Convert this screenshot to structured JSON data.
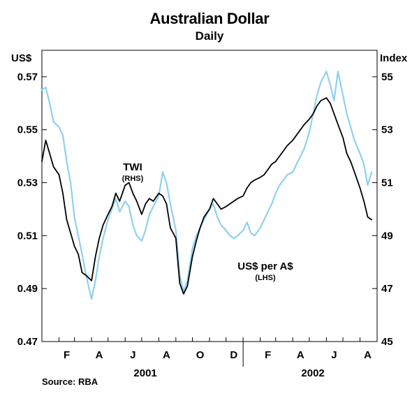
{
  "chart_data": {
    "type": "line",
    "title": "Australian Dollar",
    "subtitle": "Daily",
    "source": "Source: RBA",
    "left_axis": {
      "unit": "US$",
      "ticks": [
        "0.57",
        "0.55",
        "0.53",
        "0.51",
        "0.49",
        "0.47"
      ],
      "ylim": [
        0.47,
        0.58
      ]
    },
    "right_axis": {
      "unit": "Index",
      "ticks": [
        "55",
        "53",
        "51",
        "49",
        "47",
        "45"
      ],
      "ylim": [
        45,
        56
      ]
    },
    "x_axis": {
      "month_labels": [
        "F",
        "A",
        "J",
        "A",
        "O",
        "D",
        "F",
        "A",
        "J",
        "A"
      ],
      "year_labels": [
        "2001",
        "2002"
      ],
      "range": [
        "2001-01",
        "2002-08"
      ]
    },
    "series": [
      {
        "name": "TWI",
        "sub": "(RHS)",
        "axis": "right",
        "color": "#000000",
        "points": [
          [
            "2001-01-01",
            51.8
          ],
          [
            "2001-01-08",
            52.6
          ],
          [
            "2001-01-15",
            52.1
          ],
          [
            "2001-01-22",
            51.6
          ],
          [
            "2001-02-01",
            51.3
          ],
          [
            "2001-02-08",
            50.6
          ],
          [
            "2001-02-15",
            49.6
          ],
          [
            "2001-02-22",
            49.1
          ],
          [
            "2001-03-01",
            48.6
          ],
          [
            "2001-03-08",
            48.3
          ],
          [
            "2001-03-15",
            47.6
          ],
          [
            "2001-03-22",
            47.5
          ],
          [
            "2001-04-01",
            47.3
          ],
          [
            "2001-04-08",
            48.2
          ],
          [
            "2001-04-15",
            48.9
          ],
          [
            "2001-04-22",
            49.4
          ],
          [
            "2001-05-01",
            49.8
          ],
          [
            "2001-05-08",
            50.1
          ],
          [
            "2001-05-15",
            50.6
          ],
          [
            "2001-05-22",
            50.3
          ],
          [
            "2001-06-01",
            50.9
          ],
          [
            "2001-06-08",
            51.0
          ],
          [
            "2001-06-15",
            50.6
          ],
          [
            "2001-06-22",
            50.3
          ],
          [
            "2001-07-01",
            49.8
          ],
          [
            "2001-07-08",
            50.2
          ],
          [
            "2001-07-15",
            50.4
          ],
          [
            "2001-07-22",
            50.3
          ],
          [
            "2001-08-01",
            50.6
          ],
          [
            "2001-08-08",
            50.5
          ],
          [
            "2001-08-15",
            50.2
          ],
          [
            "2001-08-22",
            49.3
          ],
          [
            "2001-09-01",
            48.9
          ],
          [
            "2001-09-08",
            47.2
          ],
          [
            "2001-09-15",
            46.8
          ],
          [
            "2001-09-22",
            47.1
          ],
          [
            "2001-10-01",
            48.2
          ],
          [
            "2001-10-08",
            48.8
          ],
          [
            "2001-10-15",
            49.3
          ],
          [
            "2001-10-22",
            49.7
          ],
          [
            "2001-11-01",
            50.0
          ],
          [
            "2001-11-08",
            50.4
          ],
          [
            "2001-11-15",
            50.2
          ],
          [
            "2001-11-22",
            50.0
          ],
          [
            "2001-12-01",
            50.1
          ],
          [
            "2001-12-08",
            50.2
          ],
          [
            "2001-12-15",
            50.3
          ],
          [
            "2001-12-22",
            50.4
          ],
          [
            "2002-01-01",
            50.5
          ],
          [
            "2002-01-08",
            50.8
          ],
          [
            "2002-01-15",
            51.0
          ],
          [
            "2002-01-22",
            51.1
          ],
          [
            "2002-02-01",
            51.2
          ],
          [
            "2002-02-08",
            51.3
          ],
          [
            "2002-02-15",
            51.5
          ],
          [
            "2002-02-22",
            51.7
          ],
          [
            "2002-03-01",
            51.8
          ],
          [
            "2002-03-08",
            52.0
          ],
          [
            "2002-03-15",
            52.2
          ],
          [
            "2002-03-22",
            52.4
          ],
          [
            "2002-04-01",
            52.6
          ],
          [
            "2002-04-08",
            52.8
          ],
          [
            "2002-04-15",
            53.0
          ],
          [
            "2002-04-22",
            53.2
          ],
          [
            "2002-05-01",
            53.4
          ],
          [
            "2002-05-08",
            53.6
          ],
          [
            "2002-05-15",
            53.9
          ],
          [
            "2002-05-22",
            54.1
          ],
          [
            "2002-06-01",
            54.2
          ],
          [
            "2002-06-08",
            54.0
          ],
          [
            "2002-06-15",
            53.6
          ],
          [
            "2002-06-22",
            53.2
          ],
          [
            "2002-07-01",
            52.7
          ],
          [
            "2002-07-08",
            52.1
          ],
          [
            "2002-07-15",
            51.8
          ],
          [
            "2002-07-22",
            51.4
          ],
          [
            "2002-08-01",
            50.8
          ],
          [
            "2002-08-08",
            50.3
          ],
          [
            "2002-08-15",
            49.7
          ],
          [
            "2002-08-22",
            49.6
          ]
        ]
      },
      {
        "name": "US$ per A$",
        "sub": "(LHS)",
        "axis": "left",
        "color": "#8fd0f0",
        "points": [
          [
            "2001-01-01",
            0.565
          ],
          [
            "2001-01-08",
            0.566
          ],
          [
            "2001-01-15",
            0.56
          ],
          [
            "2001-01-22",
            0.553
          ],
          [
            "2001-02-01",
            0.551
          ],
          [
            "2001-02-08",
            0.548
          ],
          [
            "2001-02-15",
            0.538
          ],
          [
            "2001-02-22",
            0.53
          ],
          [
            "2001-03-01",
            0.517
          ],
          [
            "2001-03-08",
            0.51
          ],
          [
            "2001-03-15",
            0.503
          ],
          [
            "2001-03-22",
            0.495
          ],
          [
            "2001-04-01",
            0.486
          ],
          [
            "2001-04-08",
            0.493
          ],
          [
            "2001-04-15",
            0.502
          ],
          [
            "2001-04-22",
            0.509
          ],
          [
            "2001-05-01",
            0.516
          ],
          [
            "2001-05-08",
            0.52
          ],
          [
            "2001-05-15",
            0.524
          ],
          [
            "2001-05-22",
            0.519
          ],
          [
            "2001-06-01",
            0.523
          ],
          [
            "2001-06-08",
            0.521
          ],
          [
            "2001-06-15",
            0.514
          ],
          [
            "2001-06-22",
            0.51
          ],
          [
            "2001-07-01",
            0.508
          ],
          [
            "2001-07-08",
            0.512
          ],
          [
            "2001-07-15",
            0.518
          ],
          [
            "2001-07-22",
            0.521
          ],
          [
            "2001-08-01",
            0.525
          ],
          [
            "2001-08-08",
            0.534
          ],
          [
            "2001-08-15",
            0.53
          ],
          [
            "2001-08-22",
            0.522
          ],
          [
            "2001-09-01",
            0.512
          ],
          [
            "2001-09-08",
            0.495
          ],
          [
            "2001-09-15",
            0.489
          ],
          [
            "2001-09-22",
            0.493
          ],
          [
            "2001-10-01",
            0.505
          ],
          [
            "2001-10-08",
            0.51
          ],
          [
            "2001-10-15",
            0.513
          ],
          [
            "2001-10-22",
            0.516
          ],
          [
            "2001-11-01",
            0.52
          ],
          [
            "2001-11-08",
            0.522
          ],
          [
            "2001-11-15",
            0.517
          ],
          [
            "2001-11-22",
            0.514
          ],
          [
            "2001-12-01",
            0.512
          ],
          [
            "2001-12-08",
            0.51
          ],
          [
            "2001-12-15",
            0.509
          ],
          [
            "2001-12-22",
            0.51
          ],
          [
            "2002-01-01",
            0.512
          ],
          [
            "2002-01-08",
            0.515
          ],
          [
            "2002-01-15",
            0.511
          ],
          [
            "2002-01-22",
            0.51
          ],
          [
            "2002-02-01",
            0.513
          ],
          [
            "2002-02-08",
            0.516
          ],
          [
            "2002-02-15",
            0.519
          ],
          [
            "2002-02-22",
            0.522
          ],
          [
            "2002-03-01",
            0.526
          ],
          [
            "2002-03-08",
            0.529
          ],
          [
            "2002-03-15",
            0.531
          ],
          [
            "2002-03-22",
            0.533
          ],
          [
            "2002-04-01",
            0.534
          ],
          [
            "2002-04-08",
            0.537
          ],
          [
            "2002-04-15",
            0.54
          ],
          [
            "2002-04-22",
            0.543
          ],
          [
            "2002-05-01",
            0.549
          ],
          [
            "2002-05-08",
            0.556
          ],
          [
            "2002-05-15",
            0.563
          ],
          [
            "2002-05-22",
            0.568
          ],
          [
            "2002-06-01",
            0.572
          ],
          [
            "2002-06-08",
            0.567
          ],
          [
            "2002-06-15",
            0.561
          ],
          [
            "2002-06-22",
            0.572
          ],
          [
            "2002-07-01",
            0.563
          ],
          [
            "2002-07-08",
            0.556
          ],
          [
            "2002-07-15",
            0.551
          ],
          [
            "2002-07-22",
            0.546
          ],
          [
            "2002-08-01",
            0.541
          ],
          [
            "2002-08-08",
            0.537
          ],
          [
            "2002-08-15",
            0.529
          ],
          [
            "2002-08-22",
            0.534
          ]
        ]
      }
    ]
  }
}
